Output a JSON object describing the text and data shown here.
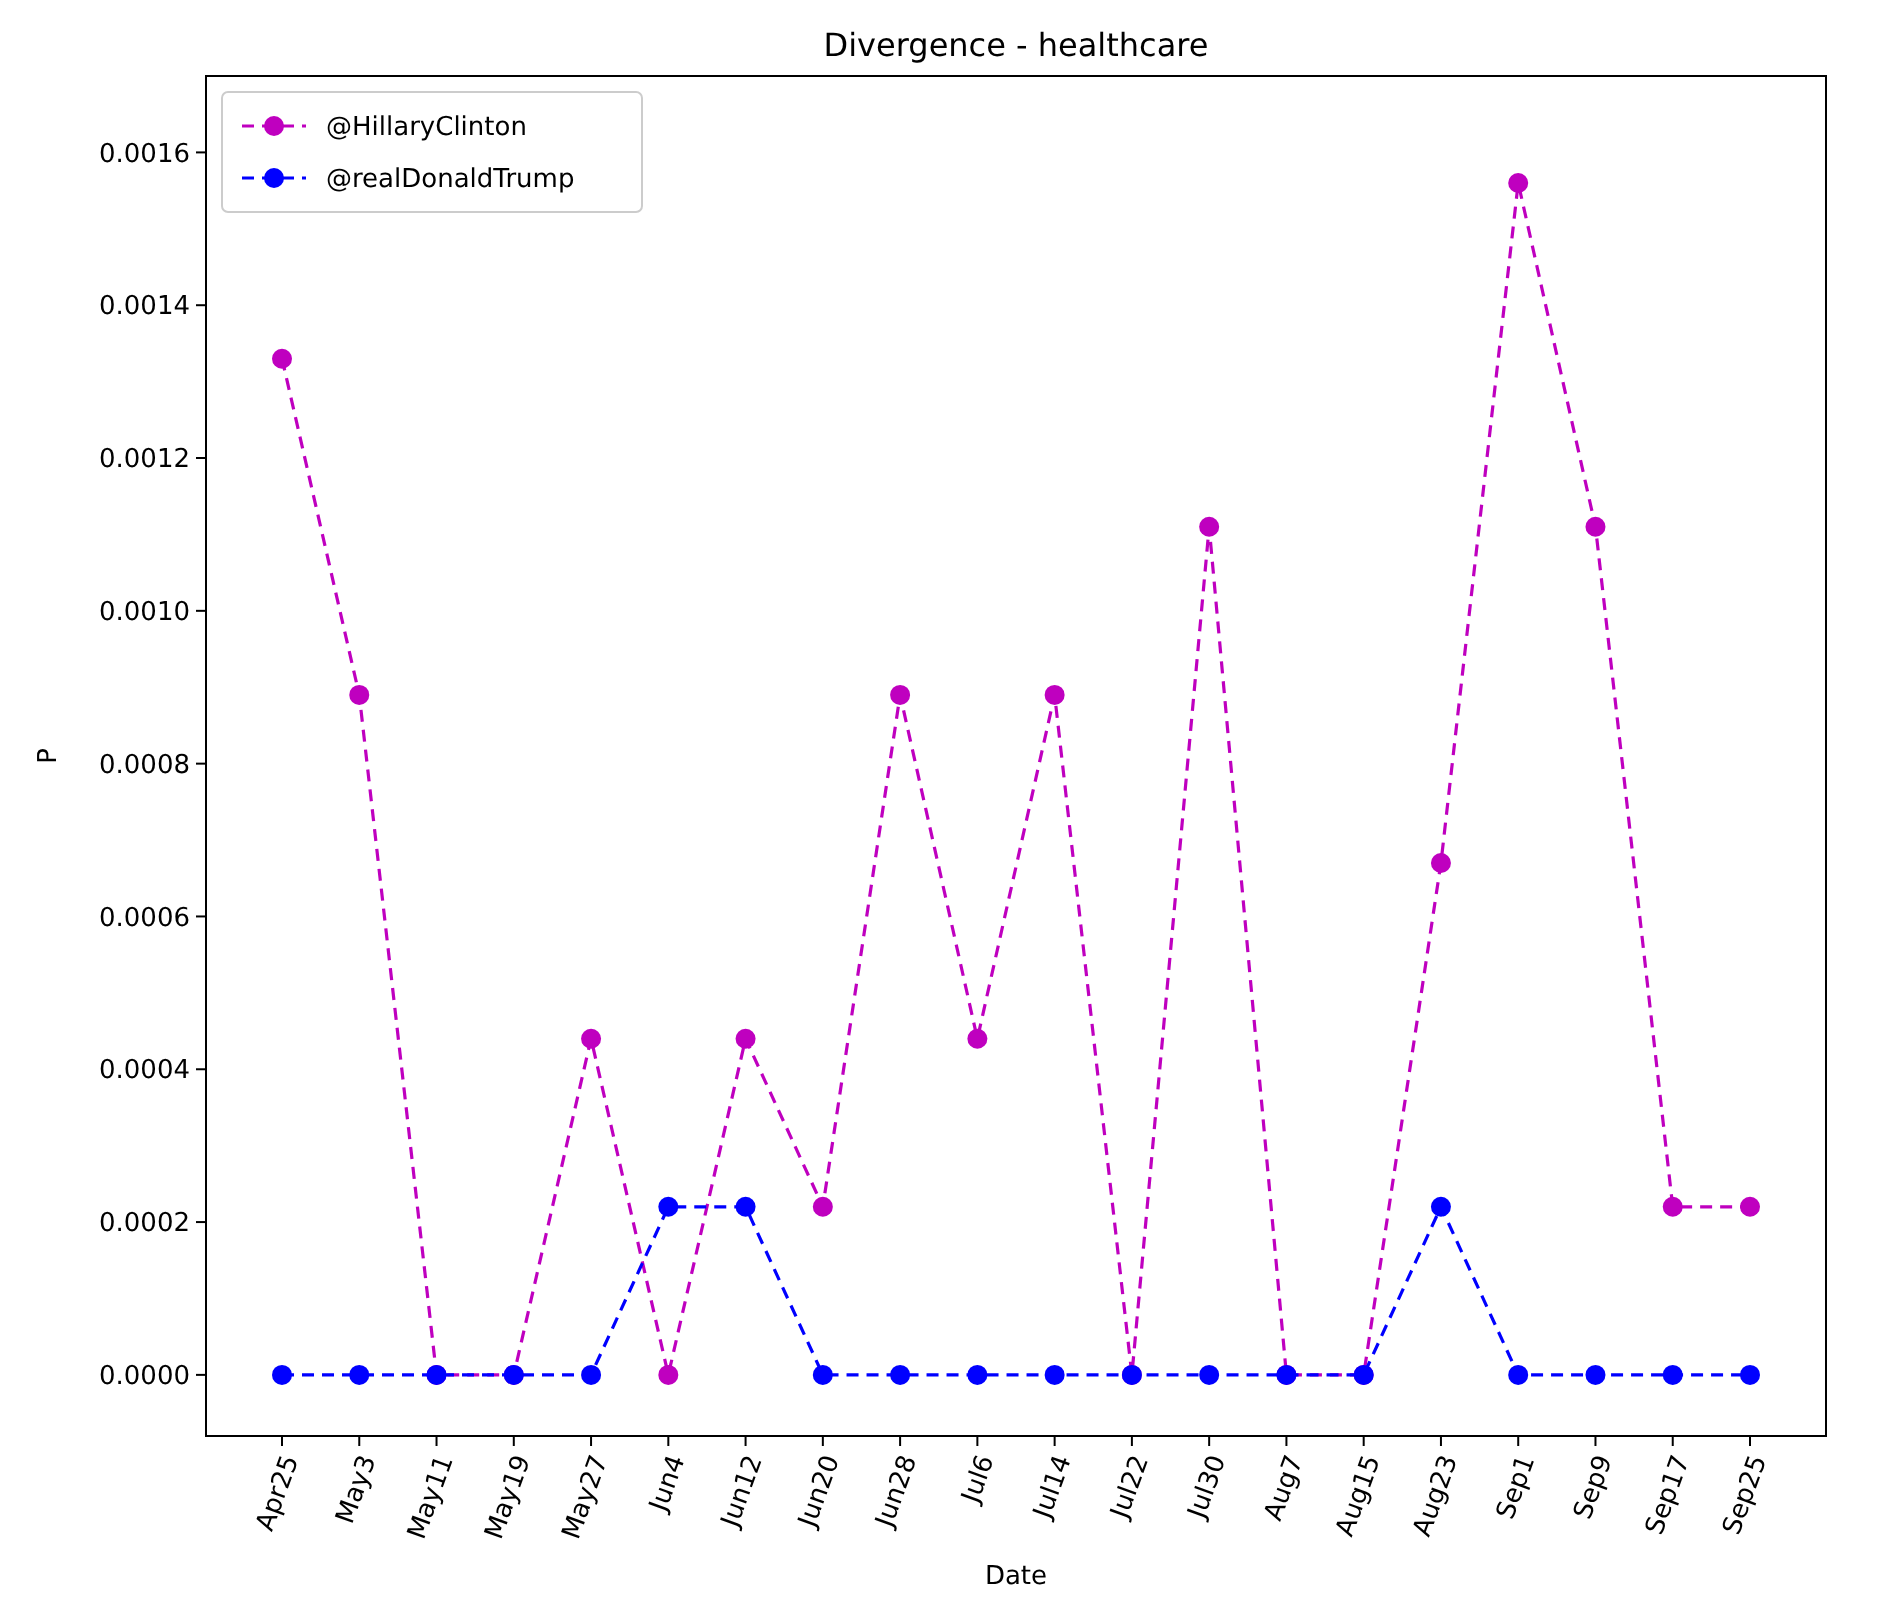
{
  "chart_data": {
    "type": "line",
    "title": "Divergence - healthcare",
    "xlabel": "Date",
    "ylabel": "P",
    "categories": [
      "Apr25",
      "May3",
      "May11",
      "May19",
      "May27",
      "Jun4",
      "Jun12",
      "Jun20",
      "Jun28",
      "Jul6",
      "Jul14",
      "Jul22",
      "Jul30",
      "Aug7",
      "Aug15",
      "Aug23",
      "Sep1",
      "Sep9",
      "Sep17",
      "Sep25"
    ],
    "series": [
      {
        "name": "@HillaryClinton",
        "color": "#bf00bf",
        "values": [
          0.00133,
          0.00089,
          0,
          0,
          0.00044,
          0,
          0.00044,
          0.00022,
          0.00089,
          0.00044,
          0.00089,
          0,
          0.00111,
          0,
          0,
          0.00067,
          0.00156,
          0.00111,
          0.00022,
          0.00022
        ]
      },
      {
        "name": "@realDonaldTrump",
        "color": "#0000ff",
        "values": [
          0,
          0,
          0,
          0,
          0,
          0.00022,
          0.00022,
          0,
          0,
          0,
          0,
          0,
          0,
          0,
          0,
          0.00022,
          0,
          0,
          0,
          0
        ]
      }
    ],
    "ylim": [
      -8e-05,
      0.0017
    ],
    "yticks": [
      {
        "value": 0,
        "label": "0.0000"
      },
      {
        "value": 0.0002,
        "label": "0.0002"
      },
      {
        "value": 0.0004,
        "label": "0.0004"
      },
      {
        "value": 0.0006,
        "label": "0.0006"
      },
      {
        "value": 0.0008,
        "label": "0.0008"
      },
      {
        "value": 0.001,
        "label": "0.0010"
      },
      {
        "value": 0.0012,
        "label": "0.0012"
      },
      {
        "value": 0.0014,
        "label": "0.0014"
      },
      {
        "value": 0.0016,
        "label": "0.0016"
      }
    ],
    "legend": "top left",
    "marker": "circle",
    "line_style": "dashed",
    "grid": false
  }
}
